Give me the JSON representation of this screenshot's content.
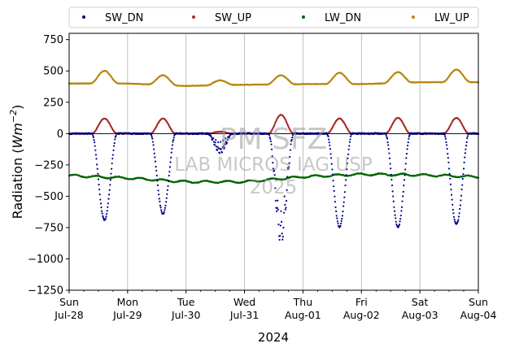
{
  "chart_data": {
    "type": "scatter",
    "title": "",
    "xlabel": "2024",
    "ylabel": "Radiation (Wm^{-2})",
    "ylabel_main": "Radiation (",
    "ylabel_unit": "Wm",
    "ylabel_exp": "−2",
    "ylabel_close": ")",
    "ylim": [
      -1250,
      800
    ],
    "yticks": [
      750,
      500,
      250,
      0,
      -250,
      -500,
      -750,
      -1000,
      -1250
    ],
    "ytick_labels": [
      "750",
      "500",
      "250",
      "0",
      "−250",
      "−500",
      "−750",
      "−1000",
      "−1250"
    ],
    "xlim_hours": [
      0,
      168
    ],
    "xticks": [
      {
        "day": "Sun",
        "date": "Jul-28"
      },
      {
        "day": "Mon",
        "date": "Jul-29"
      },
      {
        "day": "Tue",
        "date": "Jul-30"
      },
      {
        "day": "Wed",
        "date": "Jul-31"
      },
      {
        "day": "Thu",
        "date": "Aug-01"
      },
      {
        "day": "Fri",
        "date": "Aug-02"
      },
      {
        "day": "Sat",
        "date": "Aug-03"
      },
      {
        "day": "Sun",
        "date": "Aug-04"
      }
    ],
    "grid": "vertical",
    "zero_line": true,
    "legend_position": "top",
    "watermark": [
      "PM SFZ",
      "LAB MICROS IAG USP",
      "2025"
    ],
    "series": [
      {
        "name": "SW_DN",
        "color": "#00008b",
        "daily_min": [
          -690,
          -640,
          -160,
          -800,
          -745,
          -745,
          -725
        ],
        "daily_min_hour": [
          14.5,
          14.5,
          14.0,
          15.0,
          15.0,
          15.0,
          15.0
        ]
      },
      {
        "name": "SW_UP",
        "color": "#a52a2a",
        "daily_peak": [
          120,
          120,
          15,
          150,
          120,
          125,
          125
        ]
      },
      {
        "name": "LW_DN",
        "color": "#006400",
        "daily_level": [
          -335,
          -355,
          -385,
          -385,
          -345,
          -325,
          -330,
          -345
        ]
      },
      {
        "name": "LW_UP",
        "color": "#b8860b",
        "daily_base": [
          400,
          400,
          380,
          390,
          395,
          395,
          410,
          410
        ],
        "daily_peak": [
          500,
          465,
          425,
          465,
          485,
          490,
          510
        ]
      }
    ]
  }
}
